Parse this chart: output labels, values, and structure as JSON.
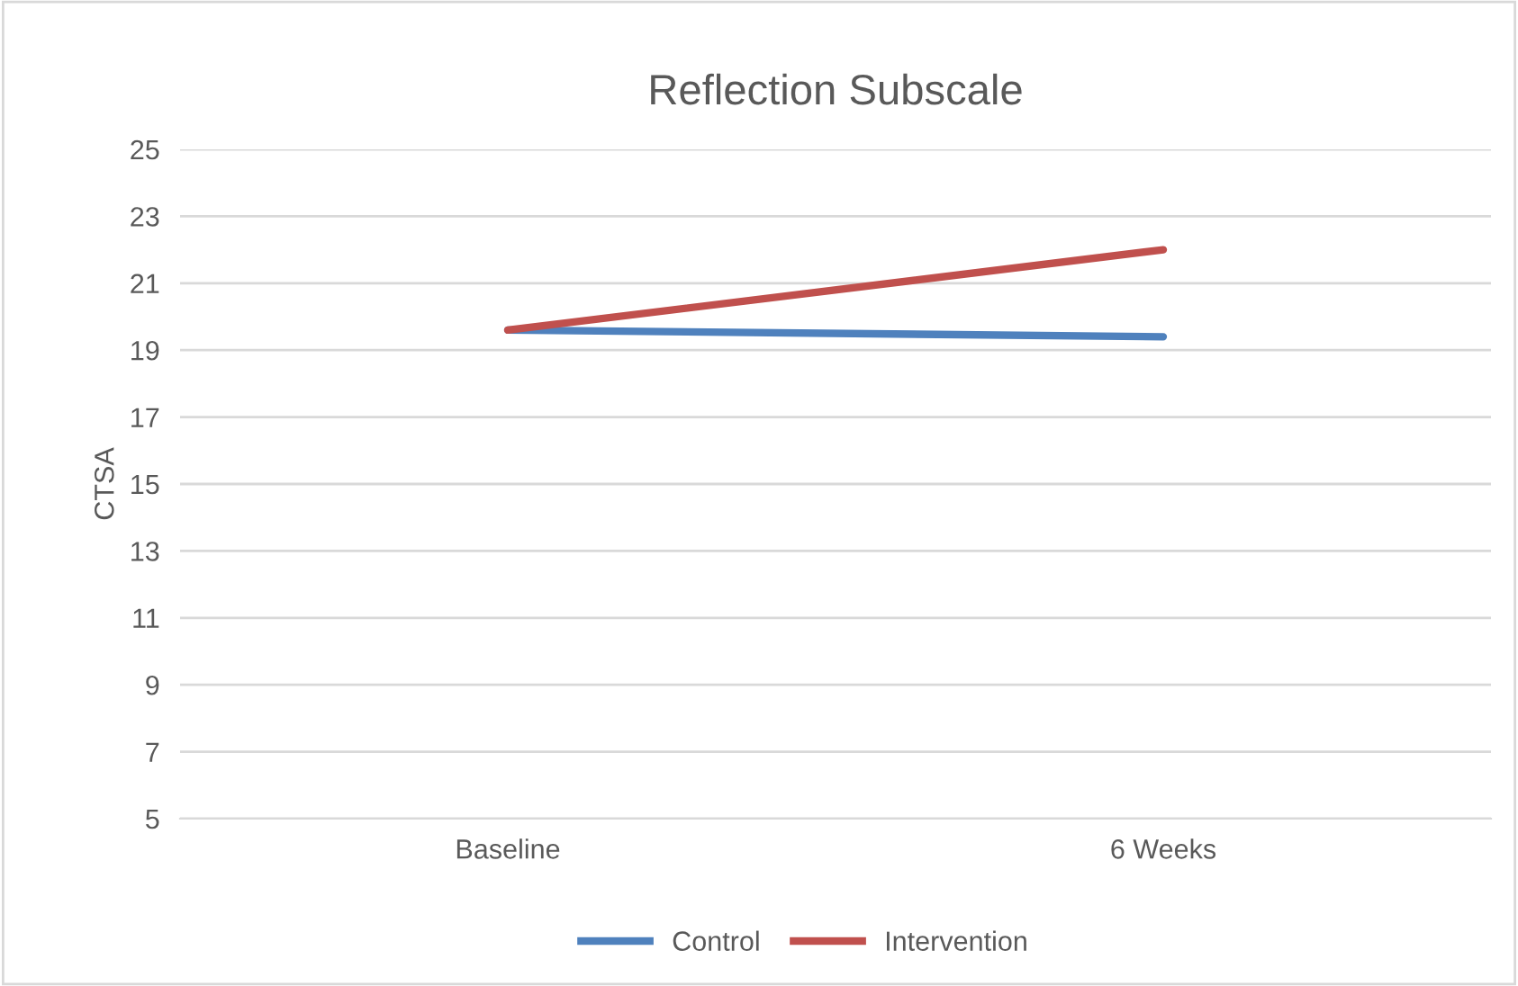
{
  "chart_data": {
    "type": "line",
    "title": "Reflection Subscale",
    "ylabel": "CTSA",
    "categories": [
      "Baseline",
      "6 Weeks"
    ],
    "series": [
      {
        "name": "Control",
        "color": "#4f81bd",
        "values": [
          19.6,
          19.4
        ]
      },
      {
        "name": "Intervention",
        "color": "#c0504d",
        "values": [
          19.6,
          22.0
        ]
      }
    ],
    "ylim": [
      5,
      25
    ],
    "yticks": [
      5,
      7,
      9,
      11,
      13,
      15,
      17,
      19,
      21,
      23,
      25
    ],
    "grid": "y",
    "legend": "bottom",
    "marker": "none",
    "line_style": "solid"
  }
}
